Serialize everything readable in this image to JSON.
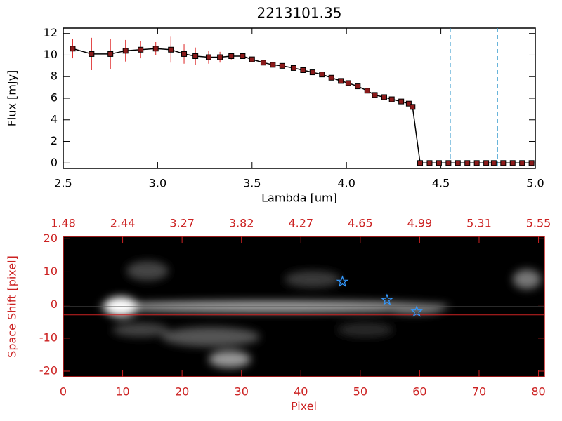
{
  "chart_data": [
    {
      "type": "line",
      "title": "2213101.35",
      "xlabel": "Lambda [um]",
      "ylabel": "Flux [mJy]",
      "x": [
        2.55,
        2.65,
        2.75,
        2.83,
        2.91,
        2.99,
        3.07,
        3.14,
        3.2,
        3.27,
        3.33,
        3.39,
        3.45,
        3.5,
        3.56,
        3.61,
        3.66,
        3.72,
        3.77,
        3.82,
        3.87,
        3.92,
        3.97,
        4.01,
        4.06,
        4.11,
        4.15,
        4.2,
        4.24,
        4.29,
        4.33,
        4.35,
        4.39,
        4.44,
        4.49,
        4.54,
        4.59,
        4.64,
        4.69,
        4.74,
        4.78,
        4.83,
        4.88,
        4.93,
        4.98
      ],
      "values": [
        10.6,
        10.1,
        10.1,
        10.4,
        10.5,
        10.6,
        10.5,
        10.1,
        9.9,
        9.8,
        9.8,
        9.9,
        9.9,
        9.6,
        9.3,
        9.1,
        9.0,
        8.8,
        8.6,
        8.4,
        8.2,
        7.9,
        7.6,
        7.4,
        7.1,
        6.7,
        6.3,
        6.1,
        5.9,
        5.7,
        5.5,
        5.2,
        0,
        0,
        0,
        0,
        0,
        0,
        0,
        0,
        0,
        0,
        0,
        0,
        0
      ],
      "errors": [
        0.9,
        1.5,
        1.4,
        1.0,
        0.8,
        0.6,
        1.2,
        0.9,
        0.8,
        0.6,
        0.5,
        0.3,
        0.2,
        0.15,
        0.15,
        0.15,
        0.15,
        0.15,
        0.15,
        0.15,
        0.15,
        0.15,
        0.15,
        0.15,
        0.15,
        0.15,
        0.15,
        0.15,
        0.15,
        0.15,
        0.15,
        0.15,
        0.1,
        0.1,
        0.1,
        0.1,
        0.1,
        0.1,
        0.1,
        0.1,
        0.1,
        0.1,
        0.1,
        0.1,
        0.1
      ],
      "color": "#000000",
      "marker_color": "#8b1a1a",
      "error_color": "#dd2222",
      "xlim": [
        2.5,
        5.0
      ],
      "ylim": [
        -0.5,
        12.5
      ],
      "xticks": [
        2.5,
        {
          "value": 3,
          "label": "3.0"
        },
        3.5,
        {
          "value": 4,
          "label": "4.0"
        },
        4.5,
        {
          "value": 5,
          "label": "5.0"
        }
      ],
      "yticks": [
        0,
        2,
        4,
        6,
        8,
        10,
        12
      ],
      "vlines": [
        4.55,
        4.8
      ],
      "vline_color": "#3399cc"
    },
    {
      "type": "image",
      "xlabel": "Pixel",
      "ylabel": "Space Shift [pixel]",
      "axis_color": "#cc2222",
      "xlim": [
        0,
        81
      ],
      "ylim": [
        -21.7,
        20.7
      ],
      "xticks": [
        0,
        10,
        20,
        30,
        40,
        50,
        60,
        70,
        80
      ],
      "x2ticks": [
        {
          "value": 0,
          "label": "1.48"
        },
        {
          "value": 10,
          "label": "2.44"
        },
        {
          "value": 20,
          "label": "3.27"
        },
        {
          "value": 30,
          "label": "3.82"
        },
        {
          "value": 40,
          "label": "4.27"
        },
        {
          "value": 50,
          "label": "4.65"
        },
        {
          "value": 60,
          "label": "4.99"
        },
        {
          "value": 70,
          "label": "5.31"
        },
        {
          "value": 80,
          "label": "5.55"
        }
      ],
      "yticks": [
        -20,
        -10,
        0,
        10,
        20
      ],
      "hlines": [
        3,
        -3
      ],
      "hline_color": "#cc2222",
      "stars": {
        "x": [
          47,
          54.5,
          59.5
        ],
        "y": [
          7,
          1.5,
          -2
        ]
      },
      "star_color": "#3399ff"
    }
  ]
}
